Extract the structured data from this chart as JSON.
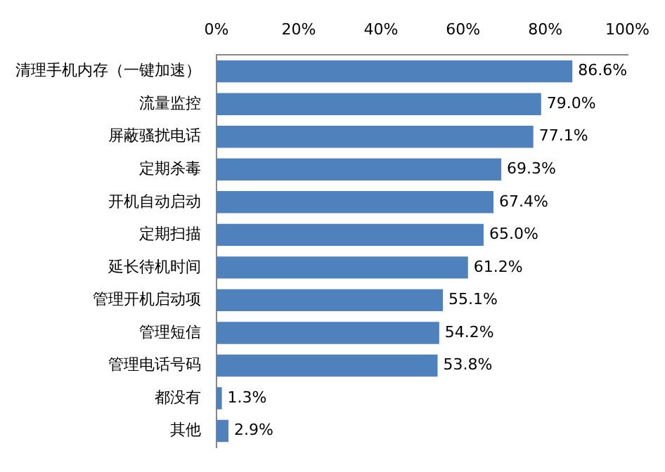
{
  "chart_data": {
    "type": "bar",
    "orientation": "horizontal",
    "categories": [
      "清理手机内存（一键加速）",
      "流量监控",
      "屏蔽骚扰电话",
      "定期杀毒",
      "开机自动启动",
      "定期扫描",
      "延长待机时间",
      "管理开机启动项",
      "管理短信",
      "管理电话号码",
      "都没有",
      "其他"
    ],
    "values": [
      86.6,
      79.0,
      77.1,
      69.3,
      67.4,
      65.0,
      61.2,
      55.1,
      54.2,
      53.8,
      1.3,
      2.9
    ],
    "value_labels": [
      "86.6%",
      "79.0%",
      "77.1%",
      "69.3%",
      "67.4%",
      "65.0%",
      "61.2%",
      "55.1%",
      "54.2%",
      "53.8%",
      "1.3%",
      "2.9%"
    ],
    "color": "#4f81bd",
    "xlim": [
      0,
      100
    ],
    "xticks": [
      {
        "value": 0,
        "label": "0%"
      },
      {
        "value": 20,
        "label": "20%"
      },
      {
        "value": 40,
        "label": "40%"
      },
      {
        "value": 60,
        "label": "60%"
      },
      {
        "value": 80,
        "label": "80%"
      },
      {
        "value": 100,
        "label": "100%"
      }
    ],
    "grid": false,
    "legend": false
  }
}
